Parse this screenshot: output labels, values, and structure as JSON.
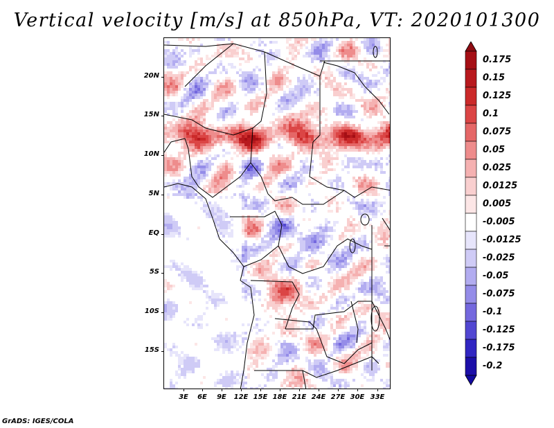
{
  "title": "Vertical velocity [m/s] at 850hPa, VT: 2020101300",
  "credit": "GrADS: IGES/COLA",
  "latitude_labels": [
    "20N",
    "15N",
    "10N",
    "5N",
    "EQ",
    "5S",
    "10S",
    "15S"
  ],
  "longitude_labels": [
    "3E",
    "6E",
    "9E",
    "12E",
    "15E",
    "18E",
    "21E",
    "24E",
    "27E",
    "30E",
    "33E"
  ],
  "colorbar": {
    "levels": [
      {
        "label": "0.175",
        "color": "#a50f15"
      },
      {
        "label": "0.15",
        "color": "#b8191e"
      },
      {
        "label": "0.125",
        "color": "#cb2a2a"
      },
      {
        "label": "0.1",
        "color": "#db4545"
      },
      {
        "label": "0.075",
        "color": "#e56767"
      },
      {
        "label": "0.05",
        "color": "#ee8c8c"
      },
      {
        "label": "0.025",
        "color": "#f5b1b1"
      },
      {
        "label": "0.0125",
        "color": "#f9cfcf"
      },
      {
        "label": "0.005",
        "color": "#fce6e6"
      },
      {
        "label": "-0.005",
        "color": "#ffffff"
      },
      {
        "label": "-0.0125",
        "color": "#e7e5fb"
      },
      {
        "label": "-0.025",
        "color": "#cfcbf6"
      },
      {
        "label": "-0.05",
        "color": "#b2acf0"
      },
      {
        "label": "-0.075",
        "color": "#948ce8"
      },
      {
        "label": "-0.1",
        "color": "#7468de"
      },
      {
        "label": "-0.125",
        "color": "#5247d2"
      },
      {
        "label": "-0.175",
        "color": "#3126c2"
      },
      {
        "label": "-0.2",
        "color": "#1c0fa8"
      }
    ],
    "top_color": "#8e0b12",
    "bottom_color": "#120aa0"
  }
}
